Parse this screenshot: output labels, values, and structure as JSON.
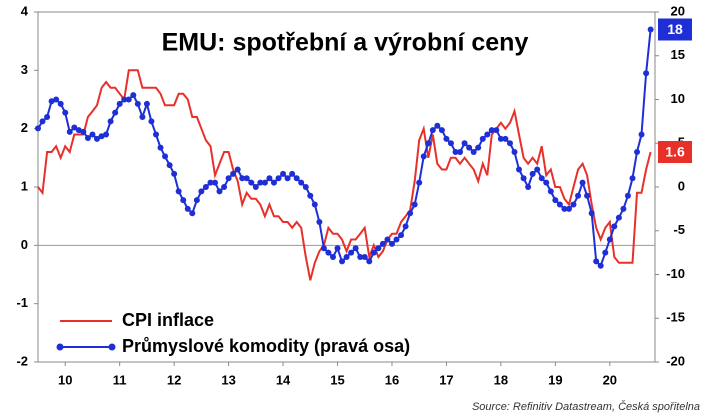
{
  "chart_data": {
    "type": "line",
    "title": "EMU: spotřební a výrobní ceny",
    "source": "Source: Refinitiv Datastream, Česká spořitelna",
    "x": [
      2010,
      2010.083,
      2010.167,
      2010.25,
      2010.333,
      2010.417,
      2010.5,
      2010.583,
      2010.667,
      2010.75,
      2010.833,
      2010.917,
      2011,
      2011.083,
      2011.167,
      2011.25,
      2011.333,
      2011.417,
      2011.5,
      2011.583,
      2011.667,
      2011.75,
      2011.833,
      2011.917,
      2012,
      2012.083,
      2012.167,
      2012.25,
      2012.333,
      2012.417,
      2012.5,
      2012.583,
      2012.667,
      2012.75,
      2012.833,
      2012.917,
      2013,
      2013.083,
      2013.167,
      2013.25,
      2013.333,
      2013.417,
      2013.5,
      2013.583,
      2013.667,
      2013.75,
      2013.833,
      2013.917,
      2014,
      2014.083,
      2014.167,
      2014.25,
      2014.333,
      2014.417,
      2014.5,
      2014.583,
      2014.667,
      2014.75,
      2014.833,
      2014.917,
      2015,
      2015.083,
      2015.167,
      2015.25,
      2015.333,
      2015.417,
      2015.5,
      2015.583,
      2015.667,
      2015.75,
      2015.833,
      2015.917,
      2016,
      2016.083,
      2016.167,
      2016.25,
      2016.333,
      2016.417,
      2016.5,
      2016.583,
      2016.667,
      2016.75,
      2016.833,
      2016.917,
      2017,
      2017.083,
      2017.167,
      2017.25,
      2017.333,
      2017.417,
      2017.5,
      2017.583,
      2017.667,
      2017.75,
      2017.833,
      2017.917,
      2018,
      2018.083,
      2018.167,
      2018.25,
      2018.333,
      2018.417,
      2018.5,
      2018.583,
      2018.667,
      2018.75,
      2018.833,
      2018.917,
      2019,
      2019.083,
      2019.167,
      2019.25,
      2019.333,
      2019.417,
      2019.5,
      2019.583,
      2019.667,
      2019.75,
      2019.833,
      2019.917,
      2020,
      2020.083,
      2020.167,
      2020.25,
      2020.333,
      2020.417,
      2020.5,
      2020.583,
      2020.667,
      2020.75,
      2020.833,
      2020.917,
      2021,
      2021.083,
      2021.167,
      2021.25
    ],
    "series": [
      {
        "name": "CPI inflace",
        "color": "#e8302a",
        "axis": "y",
        "markers": false,
        "end_label": "1.6",
        "values": [
          1.0,
          0.9,
          1.6,
          1.6,
          1.7,
          1.5,
          1.7,
          1.6,
          1.9,
          1.9,
          1.9,
          2.2,
          2.3,
          2.4,
          2.7,
          2.8,
          2.7,
          2.7,
          2.6,
          2.5,
          3.0,
          3.0,
          3.0,
          2.7,
          2.7,
          2.7,
          2.7,
          2.6,
          2.4,
          2.4,
          2.4,
          2.6,
          2.6,
          2.5,
          2.2,
          2.2,
          2.0,
          1.8,
          1.7,
          1.2,
          1.4,
          1.6,
          1.6,
          1.3,
          1.1,
          0.7,
          0.9,
          0.8,
          0.8,
          0.7,
          0.5,
          0.7,
          0.5,
          0.5,
          0.4,
          0.4,
          0.3,
          0.4,
          0.3,
          -0.2,
          -0.6,
          -0.3,
          -0.1,
          0.0,
          0.3,
          0.2,
          0.2,
          0.1,
          -0.1,
          0.1,
          0.1,
          0.2,
          0.3,
          -0.2,
          0.0,
          -0.2,
          -0.1,
          0.1,
          0.2,
          0.2,
          0.4,
          0.5,
          0.6,
          1.1,
          1.8,
          2.0,
          1.5,
          1.9,
          1.4,
          1.3,
          1.3,
          1.5,
          1.5,
          1.4,
          1.5,
          1.4,
          1.3,
          1.1,
          1.4,
          1.2,
          1.9,
          2.0,
          2.1,
          2.0,
          2.1,
          2.3,
          1.9,
          1.5,
          1.4,
          1.5,
          1.4,
          1.7,
          1.2,
          1.3,
          1.0,
          1.0,
          0.8,
          0.7,
          1.0,
          1.3,
          1.4,
          1.2,
          0.7,
          0.3,
          0.1,
          0.3,
          0.4,
          -0.2,
          -0.3,
          -0.3,
          -0.3,
          -0.3,
          0.9,
          0.9,
          1.3,
          1.6
        ]
      },
      {
        "name": "Průmyslové komodity (pravá osa)",
        "color": "#1f2fd6",
        "axis": "y2",
        "markers": true,
        "end_label": "18",
        "values": [
          6.7,
          7.5,
          8.0,
          9.8,
          10.0,
          9.5,
          8.5,
          6.3,
          6.8,
          6.5,
          6.3,
          5.6,
          6.0,
          5.5,
          5.8,
          6.0,
          7.5,
          8.5,
          9.5,
          10.0,
          10.0,
          10.5,
          9.5,
          8.0,
          9.5,
          7.5,
          6.0,
          4.5,
          3.5,
          2.5,
          1.5,
          -0.5,
          -1.5,
          -2.5,
          -3.0,
          -1.5,
          -0.5,
          0.0,
          0.5,
          0.5,
          -0.5,
          0.0,
          1.0,
          1.5,
          2.0,
          1.0,
          1.0,
          0.5,
          0.0,
          0.5,
          0.5,
          1.0,
          0.5,
          1.0,
          1.5,
          1.0,
          1.5,
          1.0,
          0.5,
          0.0,
          -1.0,
          -2.0,
          -4.0,
          -7.0,
          -7.5,
          -8.0,
          -7.0,
          -8.5,
          -8.0,
          -7.5,
          -7.0,
          -8.0,
          -8.0,
          -8.5,
          -7.5,
          -7.0,
          -6.5,
          -6.0,
          -6.5,
          -6.0,
          -5.5,
          -4.5,
          -3.0,
          -2.0,
          0.5,
          3.5,
          5.0,
          6.5,
          7.0,
          6.5,
          5.5,
          5.0,
          4.0,
          4.0,
          5.0,
          4.5,
          4.0,
          4.5,
          5.5,
          6.0,
          6.5,
          6.5,
          5.5,
          5.5,
          5.0,
          4.0,
          2.0,
          1.0,
          0.0,
          1.5,
          2.0,
          1.0,
          0.5,
          -0.5,
          -1.5,
          -2.0,
          -2.5,
          -2.5,
          -2.0,
          -1.0,
          0.5,
          -1.0,
          -3.0,
          -8.5,
          -9.0,
          -7.5,
          -6.0,
          -4.5,
          -3.5,
          -2.5,
          -1.0,
          1.0,
          4.0,
          6.0,
          13.0,
          18.0
        ]
      }
    ],
    "xlim": [
      2010,
      2021.33
    ],
    "xticks": [
      {
        "value": 2010.5,
        "label": "10"
      },
      {
        "value": 2011.5,
        "label": "11"
      },
      {
        "value": 2012.5,
        "label": "12"
      },
      {
        "value": 2013.5,
        "label": "13"
      },
      {
        "value": 2014.5,
        "label": "14"
      },
      {
        "value": 2015.5,
        "label": "15"
      },
      {
        "value": 2016.5,
        "label": "16"
      },
      {
        "value": 2017.5,
        "label": "17"
      },
      {
        "value": 2018.5,
        "label": "18"
      },
      {
        "value": 2019.5,
        "label": "19"
      },
      {
        "value": 2020.5,
        "label": "20"
      }
    ],
    "ylim": [
      -2,
      4
    ],
    "yticks": [
      -2,
      -1,
      0,
      1,
      2,
      3,
      4
    ],
    "y2lim": [
      -20,
      20
    ],
    "y2ticks": [
      -20,
      -15,
      -10,
      -5,
      0,
      5,
      10,
      15,
      20
    ],
    "zero_line": true,
    "legend": "lower-left"
  }
}
